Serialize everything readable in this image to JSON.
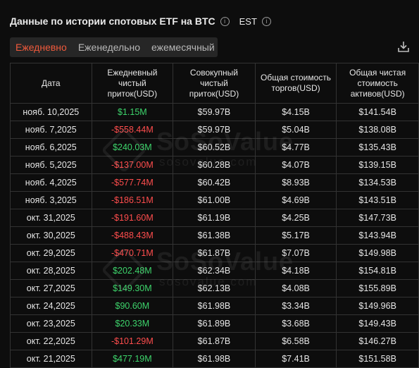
{
  "header": {
    "title": "Данные по истории спотовых ETF на BTC",
    "timezone": "EST"
  },
  "tabs": [
    {
      "label": "Ежедневно",
      "active": true
    },
    {
      "label": "Еженедельно",
      "active": false
    },
    {
      "label": "ежемесячный",
      "active": false
    }
  ],
  "watermark": {
    "brand": "SoSoValue",
    "url": "sosovalue.com"
  },
  "table": {
    "columns": [
      "Дата",
      "Ежедневный чистый приток(USD)",
      "Совокупный чистый приток(USD)",
      "Общая стоимость торгов(USD)",
      "Общая чистая стоимость активов(USD)"
    ],
    "rows": [
      {
        "date": "нояб. 10,2025",
        "daily": "$1.15M",
        "sign": "pos",
        "cumulative": "$59.97B",
        "traded": "$4.15B",
        "assets": "$141.54B"
      },
      {
        "date": "нояб. 7,2025",
        "daily": "-$558.44M",
        "sign": "neg",
        "cumulative": "$59.97B",
        "traded": "$5.04B",
        "assets": "$138.08B"
      },
      {
        "date": "нояб. 6,2025",
        "daily": "$240.03M",
        "sign": "pos",
        "cumulative": "$60.52B",
        "traded": "$4.77B",
        "assets": "$135.43B"
      },
      {
        "date": "нояб. 5,2025",
        "daily": "-$137.00M",
        "sign": "neg",
        "cumulative": "$60.28B",
        "traded": "$4.07B",
        "assets": "$139.15B"
      },
      {
        "date": "нояб. 4,2025",
        "daily": "-$577.74M",
        "sign": "neg",
        "cumulative": "$60.42B",
        "traded": "$8.93B",
        "assets": "$134.53B"
      },
      {
        "date": "нояб. 3,2025",
        "daily": "-$186.51M",
        "sign": "neg",
        "cumulative": "$61.00B",
        "traded": "$4.69B",
        "assets": "$143.51B"
      },
      {
        "date": "окт. 31,2025",
        "daily": "-$191.60M",
        "sign": "neg",
        "cumulative": "$61.19B",
        "traded": "$4.25B",
        "assets": "$147.73B"
      },
      {
        "date": "окт. 30,2025",
        "daily": "-$488.43M",
        "sign": "neg",
        "cumulative": "$61.38B",
        "traded": "$5.17B",
        "assets": "$143.94B"
      },
      {
        "date": "окт. 29,2025",
        "daily": "-$470.71M",
        "sign": "neg",
        "cumulative": "$61.87B",
        "traded": "$7.07B",
        "assets": "$149.98B"
      },
      {
        "date": "окт. 28,2025",
        "daily": "$202.48M",
        "sign": "pos",
        "cumulative": "$62.34B",
        "traded": "$4.18B",
        "assets": "$154.81B"
      },
      {
        "date": "окт. 27,2025",
        "daily": "$149.30M",
        "sign": "pos",
        "cumulative": "$62.13B",
        "traded": "$4.08B",
        "assets": "$155.89B"
      },
      {
        "date": "окт. 24,2025",
        "daily": "$90.60M",
        "sign": "pos",
        "cumulative": "$61.98B",
        "traded": "$3.34B",
        "assets": "$149.96B"
      },
      {
        "date": "окт. 23,2025",
        "daily": "$20.33M",
        "sign": "pos",
        "cumulative": "$61.89B",
        "traded": "$3.68B",
        "assets": "$149.43B"
      },
      {
        "date": "окт. 22,2025",
        "daily": "-$101.29M",
        "sign": "neg",
        "cumulative": "$61.87B",
        "traded": "$6.58B",
        "assets": "$146.27B"
      },
      {
        "date": "окт. 21,2025",
        "daily": "$477.19M",
        "sign": "pos",
        "cumulative": "$61.98B",
        "traded": "$7.41B",
        "assets": "$151.58B"
      }
    ]
  },
  "colors": {
    "positive": "#3dd46b",
    "negative": "#ff4d4d",
    "accent": "#f05a3c"
  },
  "icons": {
    "info": "info-circle-icon",
    "download": "download-icon",
    "watermark": "sosovalue-logo"
  }
}
